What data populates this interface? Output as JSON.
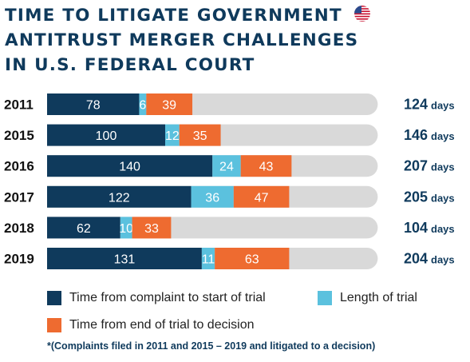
{
  "header": {
    "title_lines": [
      "TIME TO LITIGATE GOVERNMENT",
      "ANTITRUST MERGER CHALLENGES",
      "IN U.S. FEDERAL COURT"
    ],
    "flag_icon": "us-flag-icon"
  },
  "colors": {
    "complaint_to_trial": "#0f3a5c",
    "length_of_trial": "#5bc1de",
    "trial_to_decision": "#ee6b30",
    "track": "#d9d9d9",
    "text_dark": "#0f3a5c"
  },
  "chart_data": {
    "type": "bar",
    "orientation": "horizontal",
    "stacked": true,
    "categories": [
      "2011",
      "2015",
      "2016",
      "2017",
      "2018",
      "2019"
    ],
    "series": [
      {
        "name": "Time from complaint to start of trial",
        "values": [
          78,
          100,
          140,
          122,
          62,
          131
        ]
      },
      {
        "name": "Length of trial",
        "values": [
          6,
          12,
          24,
          36,
          10,
          11
        ]
      },
      {
        "name": "Time from end of trial to decision",
        "values": [
          39,
          35,
          43,
          47,
          33,
          63
        ]
      }
    ],
    "totals": [
      124,
      146,
      207,
      205,
      104,
      204
    ],
    "total_unit": "days",
    "xlim": [
      0,
      280
    ],
    "grid": false,
    "legend_position": "bottom"
  },
  "legend": {
    "items": [
      "Time from complaint to start of trial",
      "Length of trial",
      "Time from end of trial to decision"
    ]
  },
  "footnote": "*(Complaints filed in 2011 and 2015 – 2019 and litigated to a decision)"
}
